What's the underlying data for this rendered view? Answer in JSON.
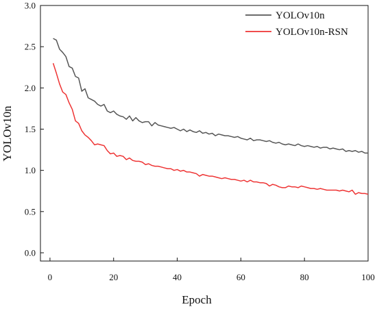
{
  "chart_data": {
    "type": "line",
    "title": "",
    "xlabel": "Epoch",
    "ylabel": "YOLOv10n",
    "xlim": [
      -3,
      100
    ],
    "ylim": [
      -0.1,
      3.0
    ],
    "xticks": [
      0,
      20,
      40,
      60,
      80,
      100
    ],
    "yticks": [
      0.0,
      0.5,
      1.0,
      1.5,
      2.0,
      2.5,
      3.0
    ],
    "xtick_labels": [
      "0",
      "20",
      "40",
      "60",
      "80",
      "100"
    ],
    "ytick_labels": [
      "0.0",
      "0.5",
      "1.0",
      "1.5",
      "2.0",
      "2.5",
      "3.0"
    ],
    "grid": false,
    "legend_position": "top-right",
    "series": [
      {
        "name": "YOLOv10n",
        "color": "#555555",
        "x": [
          1,
          2,
          3,
          4,
          5,
          6,
          7,
          8,
          9,
          10,
          11,
          12,
          13,
          14,
          15,
          16,
          17,
          18,
          19,
          20,
          21,
          22,
          23,
          24,
          25,
          26,
          27,
          28,
          29,
          30,
          31,
          32,
          33,
          34,
          35,
          36,
          37,
          38,
          39,
          40,
          41,
          42,
          43,
          44,
          45,
          46,
          47,
          48,
          49,
          50,
          51,
          52,
          53,
          54,
          55,
          56,
          57,
          58,
          59,
          60,
          61,
          62,
          63,
          64,
          65,
          66,
          67,
          68,
          69,
          70,
          71,
          72,
          73,
          74,
          75,
          76,
          77,
          78,
          79,
          80,
          81,
          82,
          83,
          84,
          85,
          86,
          87,
          88,
          89,
          90,
          91,
          92,
          93,
          94,
          95,
          96,
          97,
          98,
          99,
          100
        ],
        "values": [
          2.6,
          2.58,
          2.47,
          2.43,
          2.38,
          2.26,
          2.24,
          2.14,
          2.12,
          1.96,
          1.99,
          1.88,
          1.86,
          1.84,
          1.8,
          1.78,
          1.8,
          1.72,
          1.7,
          1.72,
          1.68,
          1.66,
          1.65,
          1.62,
          1.66,
          1.6,
          1.64,
          1.6,
          1.58,
          1.59,
          1.59,
          1.54,
          1.58,
          1.55,
          1.54,
          1.53,
          1.52,
          1.51,
          1.52,
          1.5,
          1.48,
          1.5,
          1.47,
          1.49,
          1.47,
          1.46,
          1.48,
          1.45,
          1.46,
          1.44,
          1.45,
          1.42,
          1.44,
          1.43,
          1.42,
          1.42,
          1.41,
          1.4,
          1.41,
          1.39,
          1.38,
          1.37,
          1.39,
          1.36,
          1.37,
          1.37,
          1.36,
          1.35,
          1.36,
          1.34,
          1.33,
          1.34,
          1.32,
          1.31,
          1.32,
          1.31,
          1.3,
          1.32,
          1.3,
          1.29,
          1.3,
          1.29,
          1.28,
          1.29,
          1.27,
          1.28,
          1.28,
          1.26,
          1.27,
          1.26,
          1.25,
          1.26,
          1.23,
          1.24,
          1.23,
          1.24,
          1.22,
          1.23,
          1.21,
          1.21
        ]
      },
      {
        "name": "YOLOv10n-RSN",
        "color": "#ee3333",
        "x": [
          1,
          2,
          3,
          4,
          5,
          6,
          7,
          8,
          9,
          10,
          11,
          12,
          13,
          14,
          15,
          16,
          17,
          18,
          19,
          20,
          21,
          22,
          23,
          24,
          25,
          26,
          27,
          28,
          29,
          30,
          31,
          32,
          33,
          34,
          35,
          36,
          37,
          38,
          39,
          40,
          41,
          42,
          43,
          44,
          45,
          46,
          47,
          48,
          49,
          50,
          51,
          52,
          53,
          54,
          55,
          56,
          57,
          58,
          59,
          60,
          61,
          62,
          63,
          64,
          65,
          66,
          67,
          68,
          69,
          70,
          71,
          72,
          73,
          74,
          75,
          76,
          77,
          78,
          79,
          80,
          81,
          82,
          83,
          84,
          85,
          86,
          87,
          88,
          89,
          90,
          91,
          92,
          93,
          94,
          95,
          96,
          97,
          98,
          99,
          100
        ],
        "values": [
          2.3,
          2.18,
          2.05,
          1.95,
          1.92,
          1.82,
          1.74,
          1.6,
          1.57,
          1.48,
          1.43,
          1.4,
          1.36,
          1.31,
          1.32,
          1.31,
          1.3,
          1.24,
          1.2,
          1.21,
          1.17,
          1.18,
          1.17,
          1.13,
          1.15,
          1.12,
          1.11,
          1.11,
          1.1,
          1.07,
          1.08,
          1.06,
          1.05,
          1.05,
          1.04,
          1.03,
          1.02,
          1.02,
          1.0,
          1.01,
          0.99,
          1.0,
          0.98,
          0.98,
          0.97,
          0.96,
          0.93,
          0.95,
          0.94,
          0.93,
          0.93,
          0.92,
          0.91,
          0.9,
          0.91,
          0.9,
          0.89,
          0.89,
          0.88,
          0.87,
          0.88,
          0.86,
          0.88,
          0.86,
          0.86,
          0.85,
          0.85,
          0.84,
          0.81,
          0.83,
          0.82,
          0.8,
          0.79,
          0.79,
          0.81,
          0.8,
          0.8,
          0.79,
          0.81,
          0.8,
          0.79,
          0.78,
          0.78,
          0.77,
          0.78,
          0.77,
          0.76,
          0.76,
          0.76,
          0.76,
          0.75,
          0.76,
          0.75,
          0.74,
          0.76,
          0.71,
          0.73,
          0.72,
          0.72,
          0.71
        ]
      }
    ]
  }
}
